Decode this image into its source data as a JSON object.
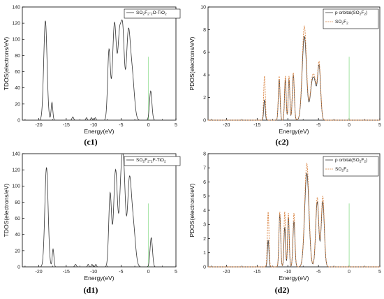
{
  "colors": {
    "tdos": "#333333",
    "p_orbital": "#3a3a3a",
    "so2f2": "#d9823f",
    "fermi": "#7dd87d"
  },
  "chart_data": [
    {
      "type": "line",
      "panel_label": "(c1)",
      "xlabel": "Energy(eV)",
      "ylabel": "TDOS(electrons/eV)",
      "xlim": [
        -23,
        5
      ],
      "ylim": [
        0,
        140
      ],
      "xticks": [
        "-20",
        "-15",
        "-10",
        "-5",
        "0",
        "5"
      ],
      "yticks": [
        "0",
        "20",
        "40",
        "60",
        "80",
        "100",
        "120",
        "140"
      ],
      "fermi_level": 0,
      "legend": {
        "position": "top-right",
        "text": "SO2F2-2O-TiO2"
      },
      "series": [
        {
          "name": "SO2F2-2O-TiO2",
          "style": "solid",
          "color": "tdos",
          "peaks": [
            [
              -18.8,
              123,
              0.3
            ],
            [
              -17.6,
              22,
              0.15
            ],
            [
              -13.8,
              4,
              0.15
            ],
            [
              -11.3,
              3,
              0.12
            ],
            [
              -10.4,
              3,
              0.12
            ],
            [
              -9.7,
              3,
              0.12
            ],
            [
              -7.2,
              86,
              0.25
            ],
            [
              -6.2,
              120,
              0.35
            ],
            [
              -5.3,
              95,
              0.3
            ],
            [
              -4.7,
              105,
              0.3
            ],
            [
              -3.7,
              100,
              0.35
            ],
            [
              -3.0,
              55,
              0.4
            ],
            [
              0.4,
              36,
              0.22
            ]
          ]
        }
      ]
    },
    {
      "type": "line",
      "panel_label": "(c2)",
      "xlabel": "Energy(eV)",
      "ylabel": "PDOS(electrons/eV)",
      "xlim": [
        -23,
        5
      ],
      "ylim": [
        0,
        10
      ],
      "xticks": [
        "-20",
        "-15",
        "-10",
        "-5",
        "0",
        "5"
      ],
      "yticks": [
        "0",
        "2",
        "4",
        "6",
        "8",
        "10"
      ],
      "fermi_level": 0,
      "legend": {
        "position": "top-right",
        "entries": [
          "p orbital(SO2F2)",
          "SO2F2"
        ]
      },
      "series": [
        {
          "name": "p orbital(SO2F2)",
          "style": "solid",
          "color": "p_orbital",
          "peaks": [
            [
              -13.8,
              1.8,
              0.12
            ],
            [
              -11.4,
              3.6,
              0.14
            ],
            [
              -10.4,
              3.6,
              0.13
            ],
            [
              -9.8,
              3.6,
              0.13
            ],
            [
              -9.1,
              4.0,
              0.16
            ],
            [
              -7.3,
              7.4,
              0.35
            ],
            [
              -6.1,
              2.6,
              0.3
            ],
            [
              -4.9,
              4.7,
              0.25
            ],
            [
              -5.6,
              2.8,
              0.3
            ]
          ]
        },
        {
          "name": "SO2F2",
          "style": "dashed",
          "color": "so2f2",
          "peaks": [
            [
              -13.8,
              3.9,
              0.13
            ],
            [
              -11.4,
              3.9,
              0.14
            ],
            [
              -10.4,
              3.9,
              0.13
            ],
            [
              -9.8,
              3.9,
              0.13
            ],
            [
              -9.1,
              4.2,
              0.16
            ],
            [
              -7.3,
              8.3,
              0.35
            ],
            [
              -6.1,
              2.8,
              0.3
            ],
            [
              -4.9,
              5.0,
              0.25
            ],
            [
              -5.6,
              3.0,
              0.3
            ]
          ]
        }
      ]
    },
    {
      "type": "line",
      "panel_label": "(d1)",
      "xlabel": "Energy(eV)",
      "ylabel": "TDOS(electrons/eV)",
      "xlim": [
        -23,
        5
      ],
      "ylim": [
        0,
        140
      ],
      "xticks": [
        "-20",
        "-15",
        "-10",
        "-5",
        "0",
        "5"
      ],
      "yticks": [
        "0",
        "20",
        "40",
        "60",
        "80",
        "100",
        "120",
        "140"
      ],
      "fermi_level": 0,
      "legend": {
        "position": "top-right",
        "text": "SO2F2-2F-TiO2"
      },
      "series": [
        {
          "name": "SO2F2-2F-TiO2",
          "style": "solid",
          "color": "tdos",
          "peaks": [
            [
              -18.6,
              123,
              0.3
            ],
            [
              -17.4,
              22,
              0.15
            ],
            [
              -13.3,
              3,
              0.15
            ],
            [
              -11.0,
              3,
              0.12
            ],
            [
              -10.3,
              3,
              0.12
            ],
            [
              -9.6,
              3,
              0.12
            ],
            [
              -7.0,
              90,
              0.25
            ],
            [
              -6.0,
              120,
              0.35
            ],
            [
              -5.0,
              95,
              0.3
            ],
            [
              -4.5,
              105,
              0.3
            ],
            [
              -3.5,
              100,
              0.35
            ],
            [
              -2.8,
              50,
              0.4
            ],
            [
              0.5,
              36,
              0.22
            ]
          ]
        }
      ]
    },
    {
      "type": "line",
      "panel_label": "(d2)",
      "xlabel": "Energy(eV)",
      "ylabel": "PDOS(electrons/eV)",
      "xlim": [
        -23,
        5
      ],
      "ylim": [
        0,
        8
      ],
      "xticks": [
        "-20",
        "-15",
        "-10",
        "-5",
        "0",
        "5"
      ],
      "yticks": [
        "0",
        "1",
        "2",
        "3",
        "4",
        "5",
        "6",
        "7",
        "8"
      ],
      "fermi_level": 0,
      "legend": {
        "position": "top-right",
        "entries": [
          "p orbital(SO2F2)",
          "SO2F2"
        ]
      },
      "series": [
        {
          "name": "p orbital(SO2F2)",
          "style": "solid",
          "color": "p_orbital",
          "peaks": [
            [
              -13.2,
              1.9,
              0.12
            ],
            [
              -11.3,
              3.7,
              0.14
            ],
            [
              -10.5,
              2.8,
              0.13
            ],
            [
              -9.9,
              3.5,
              0.13
            ],
            [
              -9.0,
              3.2,
              0.16
            ],
            [
              -6.9,
              6.6,
              0.35
            ],
            [
              -5.2,
              4.6,
              0.25
            ],
            [
              -4.3,
              4.6,
              0.25
            ]
          ]
        },
        {
          "name": "SO2F2",
          "style": "dashed",
          "color": "so2f2",
          "peaks": [
            [
              -13.2,
              3.9,
              0.13
            ],
            [
              -11.3,
              3.9,
              0.14
            ],
            [
              -10.5,
              3.9,
              0.13
            ],
            [
              -9.9,
              3.8,
              0.13
            ],
            [
              -9.0,
              3.8,
              0.16
            ],
            [
              -6.9,
              7.3,
              0.35
            ],
            [
              -5.2,
              4.9,
              0.25
            ],
            [
              -4.3,
              5.0,
              0.25
            ]
          ]
        }
      ]
    }
  ]
}
